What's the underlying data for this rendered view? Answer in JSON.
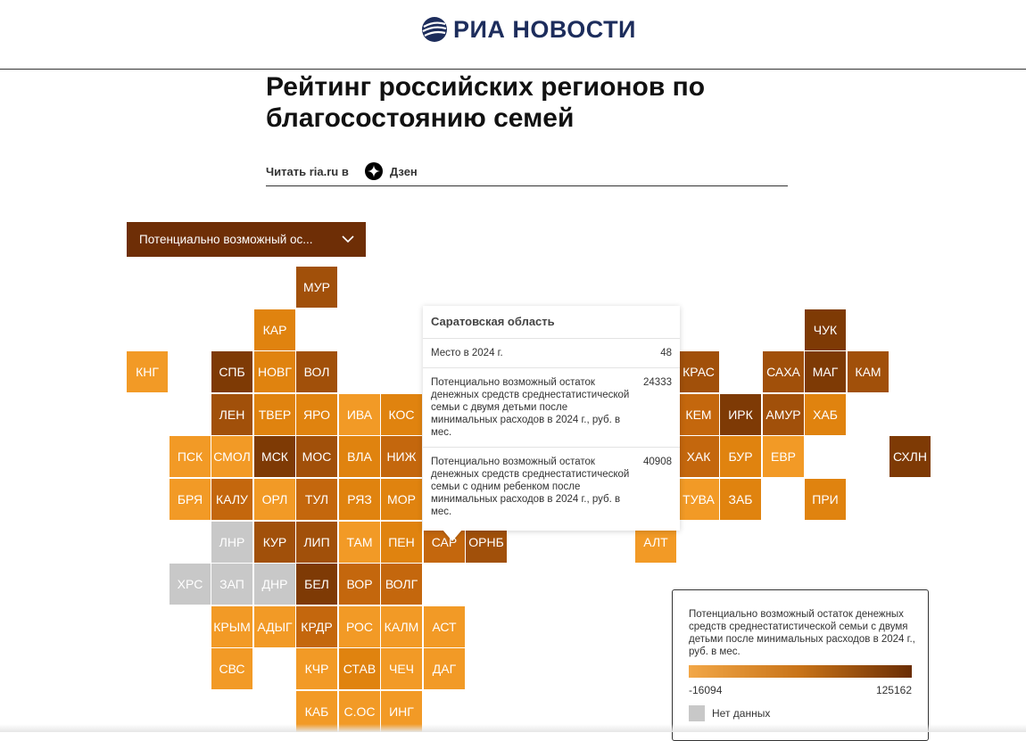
{
  "header": {
    "logo_text": "РИА НОВОСТИ"
  },
  "article": {
    "title": "Рейтинг российских регионов по благосостоянию семей",
    "read_prefix": "Читать ria.ru в",
    "read_link": "Дзен"
  },
  "dropdown": {
    "selected": "Потенциально возможный ос..."
  },
  "colors": {
    "c1": "#f29a26",
    "c2": "#e0830f",
    "c3": "#c4670d",
    "c4": "#a1500a",
    "c5": "#7e3a05",
    "nodata": "#c8c8c8"
  },
  "map": {
    "tiles": [
      {
        "label": "МУР",
        "col": 4,
        "row": 0,
        "c": "c4"
      },
      {
        "label": "КАР",
        "col": 3,
        "row": 1,
        "c": "c2"
      },
      {
        "label": "ЧУК",
        "col": 16,
        "row": 1,
        "c": "c5"
      },
      {
        "label": "КНГ",
        "col": 0,
        "row": 2,
        "c": "c1"
      },
      {
        "label": "СПБ",
        "col": 2,
        "row": 2,
        "c": "c5"
      },
      {
        "label": "НОВГ",
        "col": 3,
        "row": 2,
        "c": "c2"
      },
      {
        "label": "ВОЛ",
        "col": 4,
        "row": 2,
        "c": "c4"
      },
      {
        "label": "КРАС",
        "col": 13,
        "row": 2,
        "c": "c4"
      },
      {
        "label": "САХА",
        "col": 15,
        "row": 2,
        "c": "c4"
      },
      {
        "label": "МАГ",
        "col": 16,
        "row": 2,
        "c": "c5"
      },
      {
        "label": "КАМ",
        "col": 17,
        "row": 2,
        "c": "c4"
      },
      {
        "label": "ЛЕН",
        "col": 2,
        "row": 3,
        "c": "c4"
      },
      {
        "label": "ТВЕР",
        "col": 3,
        "row": 3,
        "c": "c2"
      },
      {
        "label": "ЯРО",
        "col": 4,
        "row": 3,
        "c": "c2"
      },
      {
        "label": "ИВА",
        "col": 5,
        "row": 3,
        "c": "c1"
      },
      {
        "label": "КОС",
        "col": 6,
        "row": 3,
        "c": "c2"
      },
      {
        "label": "КЕМ",
        "col": 13,
        "row": 3,
        "c": "c3"
      },
      {
        "label": "ИРК",
        "col": 14,
        "row": 3,
        "c": "c5"
      },
      {
        "label": "АМУР",
        "col": 15,
        "row": 3,
        "c": "c4"
      },
      {
        "label": "ХАБ",
        "col": 16,
        "row": 3,
        "c": "c2"
      },
      {
        "label": "ПСК",
        "col": 1,
        "row": 4,
        "c": "c1"
      },
      {
        "label": "СМОЛ",
        "col": 2,
        "row": 4,
        "c": "c1"
      },
      {
        "label": "МСК",
        "col": 3,
        "row": 4,
        "c": "c5"
      },
      {
        "label": "МОС",
        "col": 4,
        "row": 4,
        "c": "c4"
      },
      {
        "label": "ВЛА",
        "col": 5,
        "row": 4,
        "c": "c2"
      },
      {
        "label": "НИЖ",
        "col": 6,
        "row": 4,
        "c": "c3"
      },
      {
        "label": "ХАК",
        "col": 13,
        "row": 4,
        "c": "c3"
      },
      {
        "label": "БУР",
        "col": 14,
        "row": 4,
        "c": "c2"
      },
      {
        "label": "ЕВР",
        "col": 15,
        "row": 4,
        "c": "c1"
      },
      {
        "label": "СХЛН",
        "col": 18,
        "row": 4,
        "c": "c5"
      },
      {
        "label": "БРЯ",
        "col": 1,
        "row": 5,
        "c": "c1"
      },
      {
        "label": "КАЛУ",
        "col": 2,
        "row": 5,
        "c": "c3"
      },
      {
        "label": "ОРЛ",
        "col": 3,
        "row": 5,
        "c": "c1"
      },
      {
        "label": "ТУЛ",
        "col": 4,
        "row": 5,
        "c": "c3"
      },
      {
        "label": "РЯЗ",
        "col": 5,
        "row": 5,
        "c": "c2"
      },
      {
        "label": "МОР",
        "col": 6,
        "row": 5,
        "c": "c2"
      },
      {
        "label": "ТУВА",
        "col": 13,
        "row": 5,
        "c": "c1"
      },
      {
        "label": "ЗАБ",
        "col": 14,
        "row": 5,
        "c": "c2"
      },
      {
        "label": "ПРИ",
        "col": 16,
        "row": 5,
        "c": "c2"
      },
      {
        "label": "ЛНР",
        "col": 2,
        "row": 6,
        "c": "nodata"
      },
      {
        "label": "КУР",
        "col": 3,
        "row": 6,
        "c": "c4"
      },
      {
        "label": "ЛИП",
        "col": 4,
        "row": 6,
        "c": "c4"
      },
      {
        "label": "ТАМ",
        "col": 5,
        "row": 6,
        "c": "c1"
      },
      {
        "label": "ПЕН",
        "col": 6,
        "row": 6,
        "c": "c2"
      },
      {
        "label": "САР",
        "col": 7,
        "row": 6,
        "c": "c3"
      },
      {
        "label": "ОРНБ",
        "col": 8,
        "row": 6,
        "c": "c4"
      },
      {
        "label": "АЛТ",
        "col": 12,
        "row": 6,
        "c": "c1"
      },
      {
        "label": "ХРС",
        "col": 1,
        "row": 7,
        "c": "nodata"
      },
      {
        "label": "ЗАП",
        "col": 2,
        "row": 7,
        "c": "nodata"
      },
      {
        "label": "ДНР",
        "col": 3,
        "row": 7,
        "c": "nodata"
      },
      {
        "label": "БЕЛ",
        "col": 4,
        "row": 7,
        "c": "c5"
      },
      {
        "label": "ВОР",
        "col": 5,
        "row": 7,
        "c": "c3"
      },
      {
        "label": "ВОЛГ",
        "col": 6,
        "row": 7,
        "c": "c3"
      },
      {
        "label": "КРЫМ",
        "col": 2,
        "row": 8,
        "c": "c1"
      },
      {
        "label": "АДЫГ",
        "col": 3,
        "row": 8,
        "c": "c1"
      },
      {
        "label": "КРДР",
        "col": 4,
        "row": 8,
        "c": "c3"
      },
      {
        "label": "РОС",
        "col": 5,
        "row": 8,
        "c": "c1"
      },
      {
        "label": "КАЛМ",
        "col": 6,
        "row": 8,
        "c": "c1"
      },
      {
        "label": "АСТ",
        "col": 7,
        "row": 8,
        "c": "c1"
      },
      {
        "label": "СВС",
        "col": 2,
        "row": 9,
        "c": "c1"
      },
      {
        "label": "КЧР",
        "col": 4,
        "row": 9,
        "c": "c1"
      },
      {
        "label": "СТАВ",
        "col": 5,
        "row": 9,
        "c": "c2"
      },
      {
        "label": "ЧЕЧ",
        "col": 6,
        "row": 9,
        "c": "c1"
      },
      {
        "label": "ДАГ",
        "col": 7,
        "row": 9,
        "c": "c1"
      },
      {
        "label": "КАБ",
        "col": 4,
        "row": 10,
        "c": "c1"
      },
      {
        "label": "С.ОС",
        "col": 5,
        "row": 10,
        "c": "c1"
      },
      {
        "label": "ИНГ",
        "col": 6,
        "row": 10,
        "c": "c1"
      }
    ]
  },
  "tooltip": {
    "title": "Саратовская область",
    "rows": [
      {
        "label": "Место в 2024 г.",
        "value": "48"
      },
      {
        "label": "Потенциально возможный остаток денежных средств среднестатистической семьи с двумя детьми после минимальных расходов в 2024 г., руб. в мес.",
        "value": "24333"
      },
      {
        "label": "Потенциально возможный остаток денежных средств среднестатистической семьи с одним ребенком после минимальных расходов в 2024 г., руб. в мес.",
        "value": "40908"
      }
    ]
  },
  "legend": {
    "title": "Потенциально возможный остаток денежных средств среднестатистической семьи с двумя детьми после минимальных расходов в 2024 г., руб. в мес.",
    "min": "-16094",
    "max": "125162",
    "nodata": "Нет данных"
  }
}
